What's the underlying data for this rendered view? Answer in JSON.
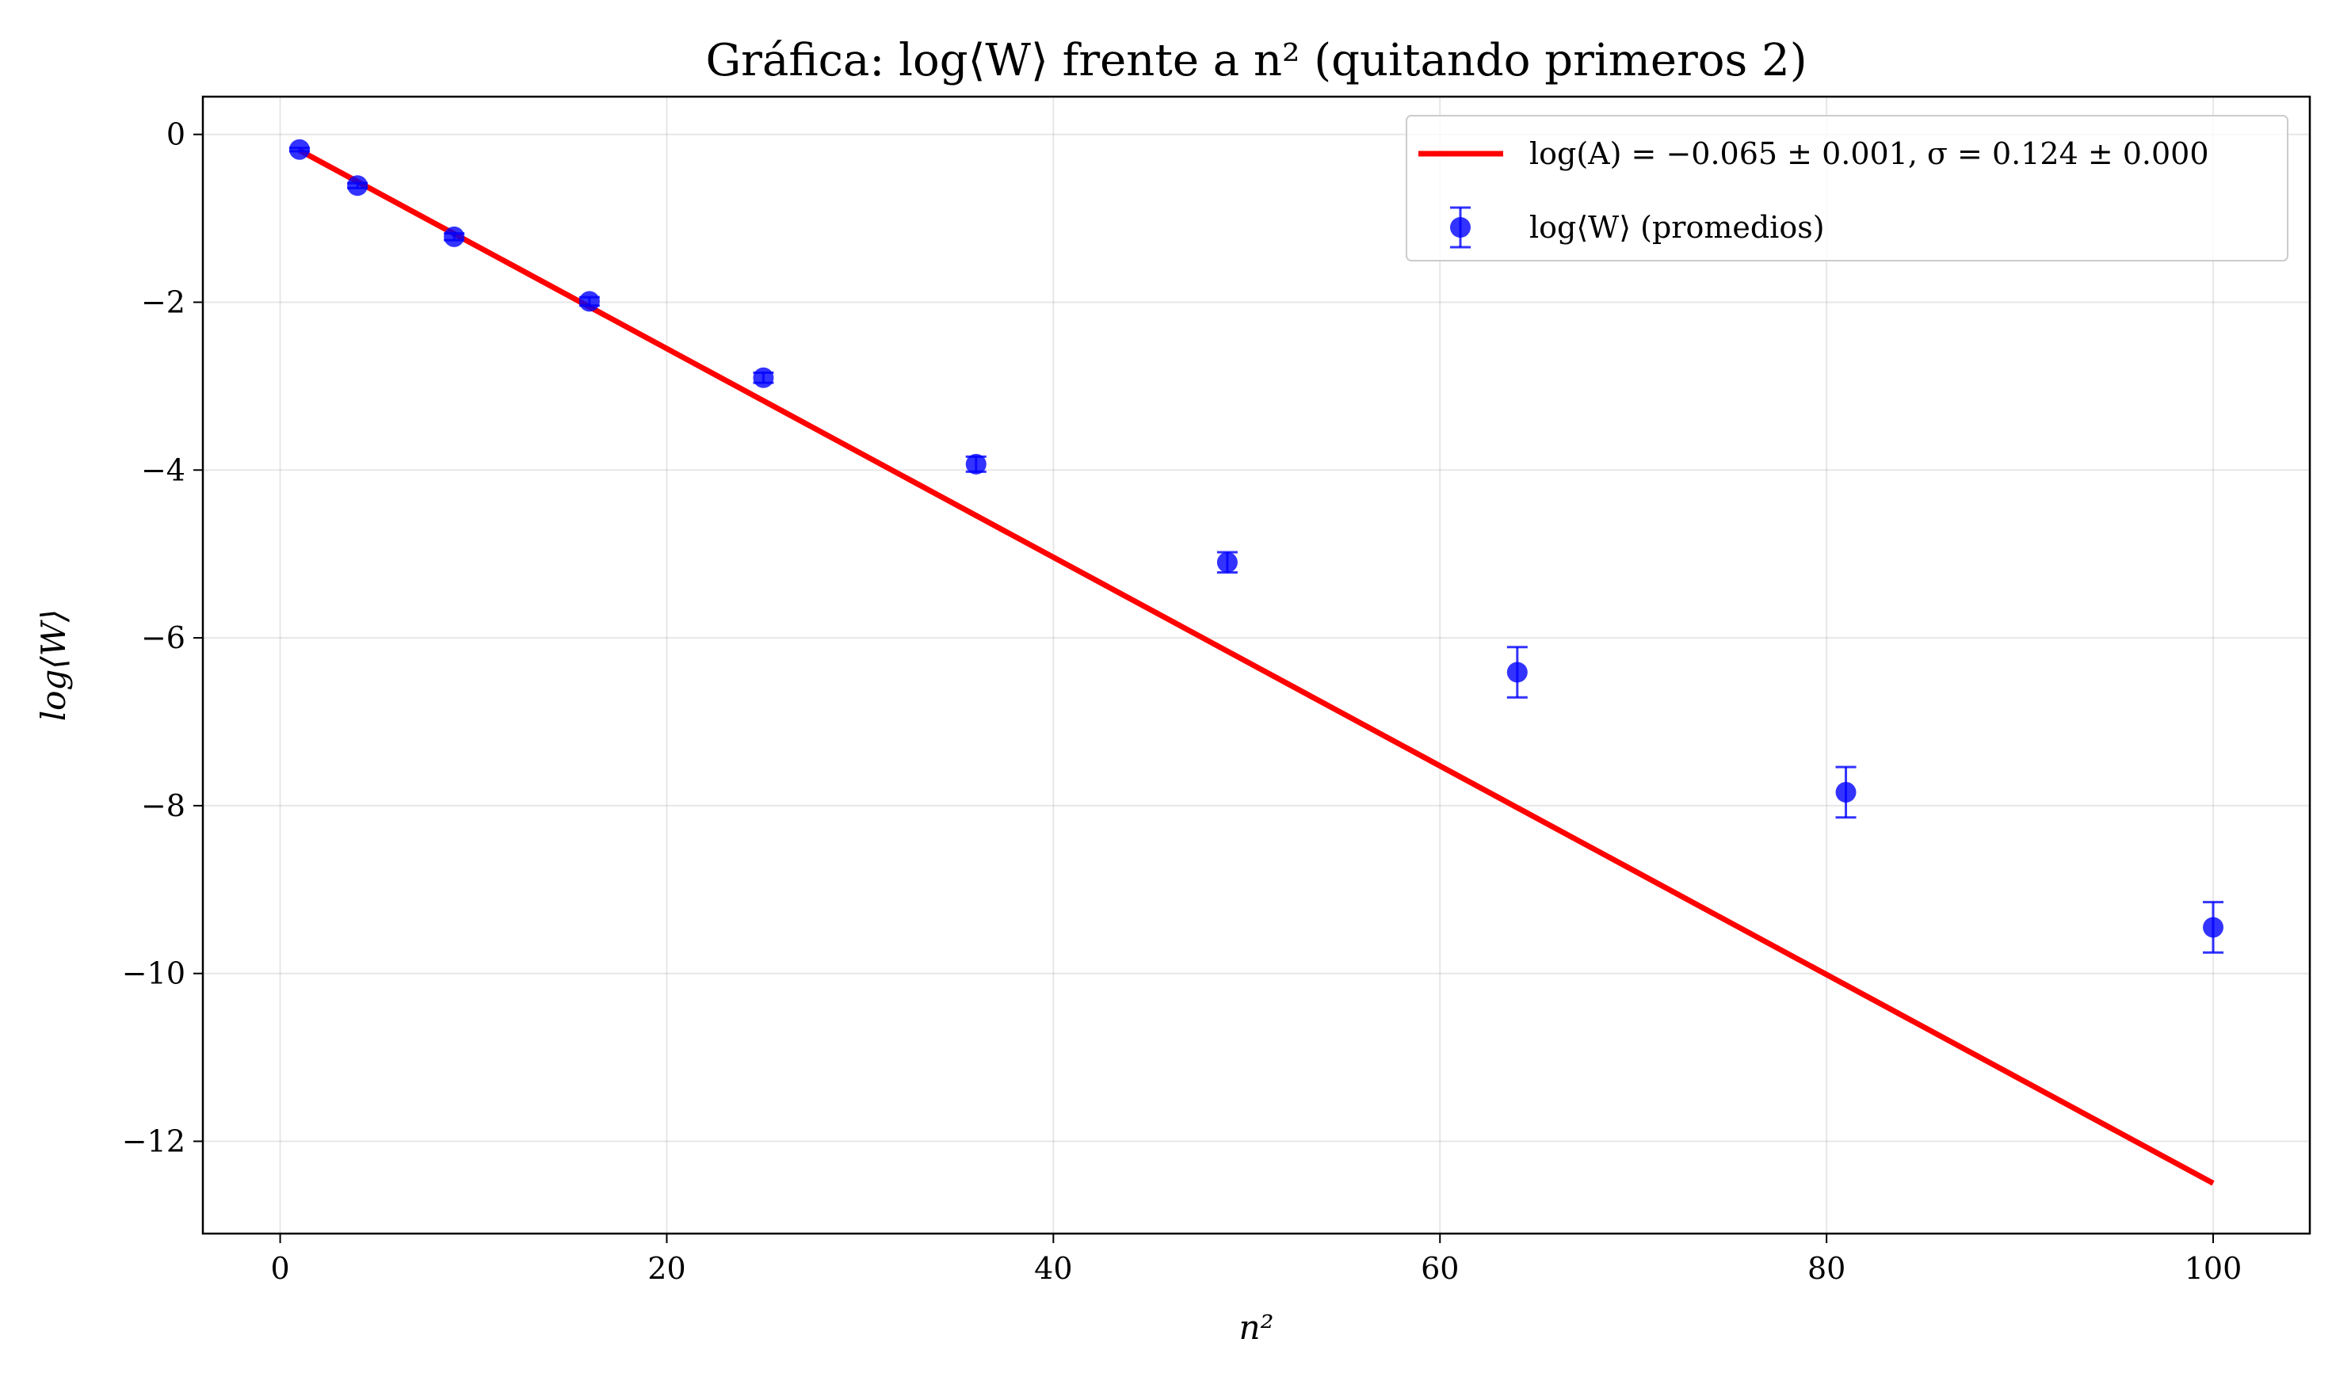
{
  "chart_data": {
    "type": "scatter",
    "title": "Gráfica: log⟨W⟩ frente a n² (quitando primeros 2)",
    "xlabel": "n²",
    "ylabel": "log⟨W⟩",
    "xlim": [
      -4,
      105
    ],
    "ylim": [
      -13.1,
      0.45
    ],
    "xticks": [
      0,
      20,
      40,
      60,
      80,
      100
    ],
    "yticks": [
      0,
      -2,
      -4,
      -6,
      -8,
      -10,
      -12
    ],
    "xtick_labels": [
      "0",
      "20",
      "40",
      "60",
      "80",
      "100"
    ],
    "ytick_labels": [
      "0",
      "−2",
      "−4",
      "−6",
      "−8",
      "−10",
      "−12"
    ],
    "grid": true,
    "legend_position": "top-right",
    "series": [
      {
        "name": "log(A) = −0.065 ± 0.001,  σ = 0.124 ± 0.000",
        "kind": "line",
        "color": "#ff0000",
        "x": [
          1,
          100
        ],
        "y": [
          -0.19,
          -12.5
        ]
      },
      {
        "name": "log⟨W⟩ (promedios)",
        "kind": "errorbar",
        "color": "#0000ff",
        "x": [
          1,
          4,
          9,
          16,
          25,
          36,
          49,
          64,
          81,
          100
        ],
        "y": [
          -0.18,
          -0.61,
          -1.22,
          -1.99,
          -2.9,
          -3.93,
          -5.1,
          -6.41,
          -7.84,
          -9.45
        ],
        "yerr": [
          0.02,
          0.03,
          0.04,
          0.05,
          0.06,
          0.09,
          0.12,
          0.3,
          0.3,
          0.3
        ]
      }
    ]
  }
}
